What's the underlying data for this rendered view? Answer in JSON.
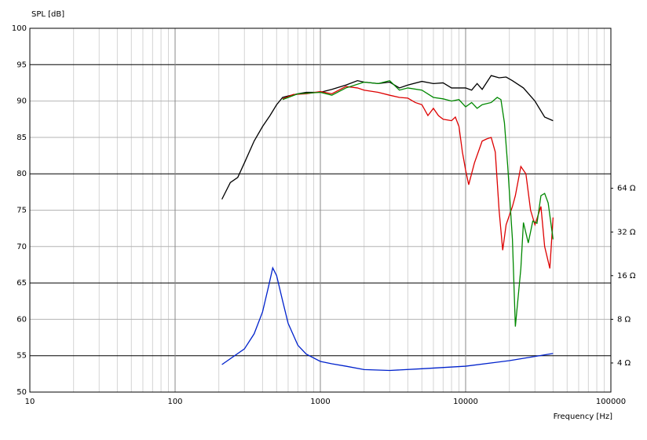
{
  "chart_data": {
    "type": "line",
    "y_label": "SPL [dB]",
    "x_label": "Frequency [Hz]",
    "xscale": "log",
    "xlim": [
      10,
      100000
    ],
    "xticks": [
      10,
      100,
      1000,
      10000,
      100000
    ],
    "ylim": [
      50,
      100
    ],
    "yticks": [
      50,
      55,
      60,
      65,
      70,
      75,
      80,
      85,
      90,
      95,
      100
    ],
    "y_major_grid": [
      95,
      80,
      65,
      55
    ],
    "y2scale": "log",
    "y2lim": [
      2.52,
      812
    ],
    "y2ticks": [
      {
        "value": 4,
        "label": "4 Ω"
      },
      {
        "value": 8,
        "label": "8 Ω"
      },
      {
        "value": 16,
        "label": "16 Ω"
      },
      {
        "value": 32,
        "label": "32 Ω"
      },
      {
        "value": 64,
        "label": "64 Ω"
      }
    ],
    "grid": true,
    "series": [
      {
        "color": "#000000",
        "x": [
          210,
          240,
          270,
          300,
          350,
          400,
          450,
          500,
          550,
          600,
          700,
          800,
          1000,
          1200,
          1500,
          1800,
          2000,
          2500,
          3000,
          3500,
          4000,
          5000,
          6000,
          7000,
          8000,
          10000,
          11000,
          12000,
          13000,
          15000,
          17000,
          19000,
          21000,
          25000,
          30000,
          35000,
          40000
        ],
        "values": [
          76.5,
          78.8,
          79.5,
          81.5,
          84.5,
          86.5,
          88,
          89.5,
          90.5,
          90.7,
          91,
          91.2,
          91.2,
          91.6,
          92.2,
          92.8,
          92.6,
          92.4,
          92.6,
          91.8,
          92.2,
          92.7,
          92.4,
          92.5,
          91.8,
          91.8,
          91.5,
          92.4,
          91.6,
          93.5,
          93.2,
          93.3,
          92.8,
          91.8,
          90,
          87.8,
          87.3
        ]
      },
      {
        "color": "#dd0000",
        "x": [
          550,
          650,
          800,
          1000,
          1200,
          1500,
          1800,
          2000,
          2500,
          3000,
          3500,
          4000,
          4500,
          5000,
          5500,
          6000,
          6500,
          7000,
          8000,
          8500,
          9000,
          9500,
          10000,
          10500,
          11500,
          13000,
          14000,
          15000,
          16000,
          17000,
          18000,
          19000,
          21000,
          22000,
          24000,
          26000,
          28000,
          30000,
          33000,
          35000,
          38000,
          40000
        ],
        "values": [
          90.3,
          90.9,
          91,
          91.3,
          91,
          92,
          91.8,
          91.5,
          91.2,
          90.8,
          90.5,
          90.4,
          89.8,
          89.5,
          88,
          89,
          88,
          87.5,
          87.3,
          87.8,
          86.5,
          83,
          80.5,
          78.5,
          81.5,
          84.5,
          84.8,
          85,
          83,
          75,
          69.5,
          73,
          75.5,
          77,
          81,
          80,
          75,
          73,
          75.5,
          70,
          67,
          74
        ]
      },
      {
        "color": "#008800",
        "x": [
          550,
          700,
          1000,
          1200,
          1500,
          2000,
          2500,
          3000,
          3500,
          4000,
          5000,
          6000,
          7000,
          8000,
          9000,
          10000,
          11000,
          12000,
          13000,
          15000,
          16500,
          17500,
          18500,
          19500,
          21000,
          22000,
          24000,
          25000,
          27000,
          29000,
          31000,
          33000,
          35000,
          37000,
          40000
        ],
        "values": [
          90.2,
          91,
          91.2,
          90.8,
          91.8,
          92.6,
          92.4,
          92.8,
          91.5,
          91.8,
          91.5,
          90.5,
          90.3,
          90,
          90.2,
          89.2,
          89.8,
          89,
          89.5,
          89.8,
          90.5,
          90.2,
          87,
          81,
          71,
          59,
          67,
          73.3,
          70.5,
          73.5,
          73.2,
          77,
          77.3,
          76,
          71
        ]
      },
      {
        "color": "#0022cc",
        "axis": "y2",
        "x": [
          210,
          300,
          350,
          400,
          440,
          470,
          500,
          550,
          600,
          700,
          800,
          1000,
          1200,
          1500,
          2000,
          3000,
          5000,
          10000,
          20000,
          40000
        ],
        "values": [
          3.9,
          5.0,
          6.35,
          9,
          13.5,
          18.1,
          16,
          10.7,
          7.5,
          5.3,
          4.6,
          4.1,
          3.95,
          3.8,
          3.6,
          3.55,
          3.65,
          3.8,
          4.15,
          4.65
        ]
      }
    ]
  }
}
